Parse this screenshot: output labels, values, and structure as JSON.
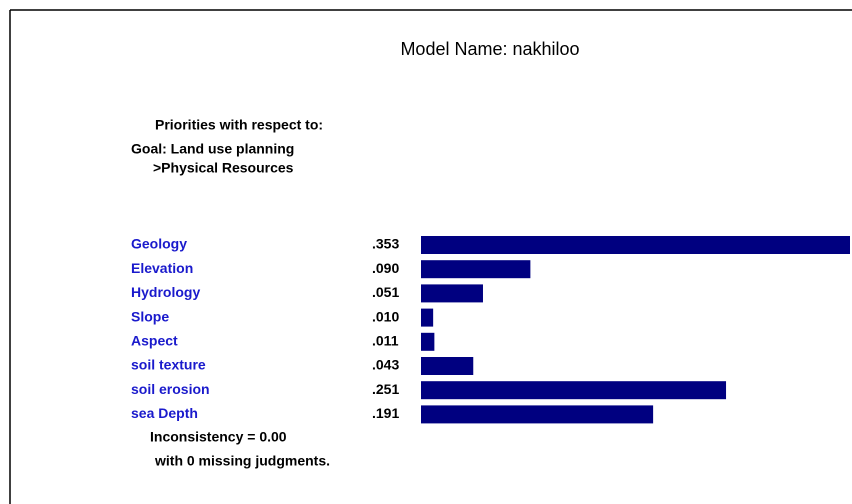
{
  "chart_data": {
    "type": "bar",
    "orientation": "horizontal",
    "title": "Model Name: nakhiloo",
    "header": [
      "Priorities with respect to:",
      "Goal: Land use planning",
      ">Physical Resources"
    ],
    "categories": [
      "Geology",
      "Elevation",
      "Hydrology",
      "Slope",
      "Aspect",
      "soil texture",
      "soil erosion",
      "sea Depth"
    ],
    "values": [
      0.353,
      0.09,
      0.051,
      0.01,
      0.011,
      0.043,
      0.251,
      0.191
    ],
    "value_labels": [
      ".353",
      ".090",
      ".051",
      ".010",
      ".011",
      ".043",
      ".251",
      ".191"
    ],
    "color": "#000080",
    "footer": [
      "Inconsistency = 0.00",
      "with 0  missing judgments."
    ]
  }
}
